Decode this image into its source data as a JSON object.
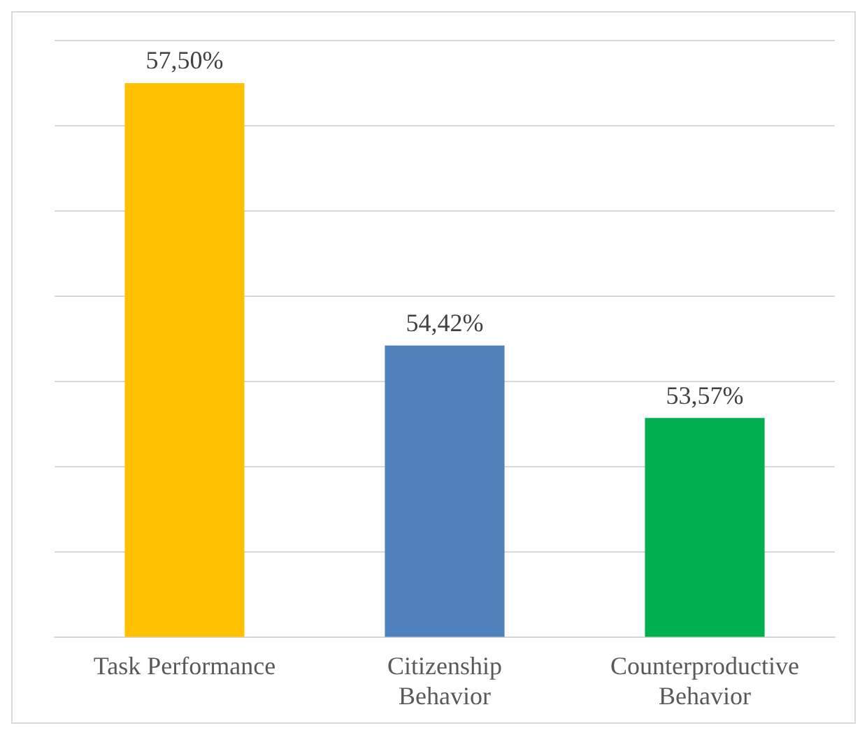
{
  "chart_data": {
    "type": "bar",
    "categories": [
      "Task Performance",
      "Citizenship\nBehavior",
      "Counterproductive\nBehavior"
    ],
    "values": [
      57.5,
      54.42,
      53.57
    ],
    "value_labels": [
      "57,50%",
      "54,42%",
      "53,57%"
    ],
    "colors": [
      "#ffc000",
      "#4f81bd",
      "#00b050"
    ],
    "ylim": [
      51,
      58
    ],
    "yticks": [
      {
        "value": 51,
        "label": null
      },
      {
        "value": 52,
        "label": null
      },
      {
        "value": 53,
        "label": null
      },
      {
        "value": 54,
        "label": null
      },
      {
        "value": 55,
        "label": null
      },
      {
        "value": 56,
        "label": null
      },
      {
        "value": 57,
        "label": null
      },
      {
        "value": 58,
        "label": null
      }
    ],
    "tick_labels": "x",
    "grid": "y",
    "legend": false
  }
}
